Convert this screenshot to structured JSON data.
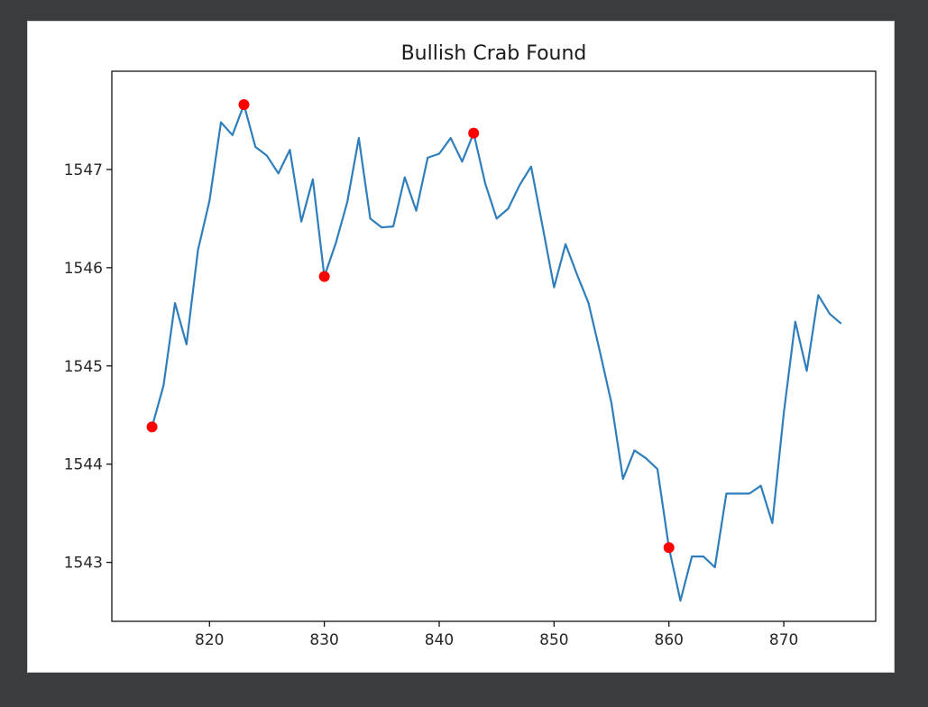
{
  "chart_data": {
    "type": "line",
    "title": "Bullish Crab Found",
    "xlabel": "",
    "ylabel": "",
    "xlim": [
      811.5,
      878
    ],
    "ylim": [
      1542.4,
      1548.0
    ],
    "xticks": [
      820,
      830,
      840,
      850,
      860,
      870
    ],
    "yticks": [
      1543,
      1544,
      1545,
      1546,
      1547
    ],
    "grid": false,
    "series": [
      {
        "line_color": "#2f7ebc",
        "x": [
          815,
          816,
          817,
          818,
          819,
          820,
          821,
          822,
          823,
          824,
          825,
          826,
          827,
          828,
          829,
          830,
          831,
          832,
          833,
          834,
          835,
          836,
          837,
          838,
          839,
          840,
          841,
          842,
          843,
          844,
          845,
          846,
          847,
          848,
          849,
          850,
          851,
          852,
          853,
          854,
          855,
          856,
          857,
          858,
          859,
          860,
          861,
          862,
          863,
          864,
          865,
          866,
          867,
          868,
          869,
          870,
          871,
          872,
          873,
          874,
          875
        ],
        "y": [
          1544.38,
          1544.8,
          1545.64,
          1545.22,
          1546.18,
          1546.68,
          1547.48,
          1547.35,
          1547.66,
          1547.23,
          1547.14,
          1546.96,
          1547.2,
          1546.47,
          1546.9,
          1545.91,
          1546.25,
          1546.67,
          1547.32,
          1546.5,
          1546.41,
          1546.42,
          1546.92,
          1546.58,
          1547.12,
          1547.16,
          1547.32,
          1547.08,
          1547.37,
          1546.86,
          1546.5,
          1546.6,
          1546.84,
          1547.03,
          1546.42,
          1545.8,
          1546.24,
          1545.93,
          1545.64,
          1545.14,
          1544.62,
          1543.85,
          1544.14,
          1544.06,
          1543.95,
          1543.15,
          1542.61,
          1543.06,
          1543.06,
          1542.95,
          1543.7,
          1543.7,
          1543.7,
          1543.78,
          1543.4,
          1544.52,
          1545.45,
          1544.95,
          1545.72,
          1545.53,
          1545.43
        ]
      }
    ],
    "markers": {
      "color": "#ff0000",
      "points": [
        {
          "x": 815,
          "y": 1544.38
        },
        {
          "x": 823,
          "y": 1547.66
        },
        {
          "x": 830,
          "y": 1545.91
        },
        {
          "x": 843,
          "y": 1547.37
        },
        {
          "x": 860,
          "y": 1543.15
        }
      ]
    }
  }
}
